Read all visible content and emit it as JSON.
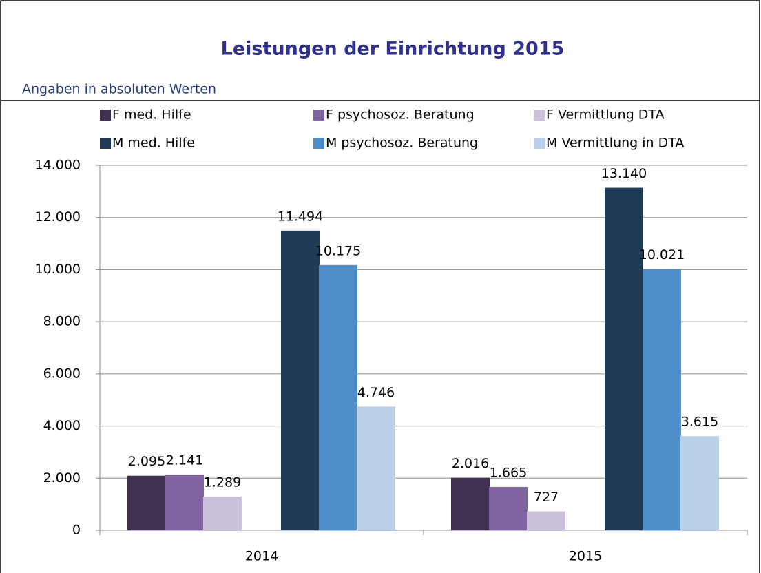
{
  "chart_data": {
    "type": "bar",
    "title": "Leistungen der Einrichtung 2015",
    "subtitle": "Angaben in absoluten Werten",
    "categories": [
      "2014",
      "2015"
    ],
    "series": [
      {
        "name": "F med. Hilfe",
        "color": "#403152",
        "values": [
          2095,
          2016
        ],
        "value_labels": [
          "2.095",
          "2.016"
        ]
      },
      {
        "name": "F psychosoz. Beratung",
        "color": "#8064a2",
        "values": [
          2141,
          1665
        ],
        "value_labels": [
          "2.141",
          "1.665"
        ]
      },
      {
        "name": "F Vermittlung DTA",
        "color": "#ccc1da",
        "values": [
          1289,
          727
        ],
        "value_labels": [
          "1.289",
          "727"
        ]
      },
      {
        "name": "M med. Hilfe",
        "color": "#1f3a56",
        "values": [
          11494,
          13140
        ],
        "value_labels": [
          "11.494",
          "13.140"
        ]
      },
      {
        "name": "M psychosoz. Beratung",
        "color": "#4f8ec9",
        "values": [
          10175,
          10021
        ],
        "value_labels": [
          "10.175",
          "10.021"
        ]
      },
      {
        "name": "M Vermittlung in DTA",
        "color": "#b9d0e9",
        "values": [
          4746,
          3615
        ],
        "value_labels": [
          "4.746",
          "3.615"
        ]
      }
    ],
    "ylim": [
      0,
      14000
    ],
    "yticks": [
      0,
      {
        "value": 2000,
        "label": "2.000"
      },
      {
        "value": 4000,
        "label": "4.000"
      },
      {
        "value": 6000,
        "label": "6.000"
      },
      {
        "value": 8000,
        "label": "8.000"
      },
      {
        "value": 10000,
        "label": "10.000"
      },
      {
        "value": 12000,
        "label": "12.000"
      },
      {
        "value": 14000,
        "label": "14.000"
      }
    ],
    "grid": true
  }
}
